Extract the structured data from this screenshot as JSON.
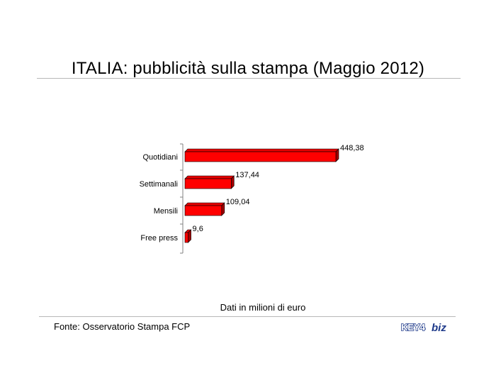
{
  "title": "ITALIA: pubblicità sulla stampa (Maggio 2012)",
  "note": "Dati in milioni di euro",
  "source": "Fonte: Osservatorio Stampa FCP",
  "logo": {
    "text_key": "KEY4",
    "text_biz": "biz"
  },
  "colors": {
    "bar_front": "#ff0000",
    "bar_top": "#e40000",
    "bar_side": "#a00000",
    "axis": "#808080"
  },
  "chart_data": {
    "type": "bar",
    "orientation": "horizontal",
    "style": "3d",
    "title": "ITALIA: pubblicità sulla stampa (Maggio 2012)",
    "categories": [
      "Quotidiani",
      "Settimanali",
      "Mensili",
      "Free press"
    ],
    "values": [
      448.38,
      137.44,
      109.04,
      9.6
    ],
    "value_labels": [
      "448,38",
      "137,44",
      "109,04",
      "9,6"
    ],
    "xlim": [
      0,
      448.38
    ],
    "xlabel": "",
    "ylabel": "",
    "grid": false,
    "legend": "none"
  }
}
